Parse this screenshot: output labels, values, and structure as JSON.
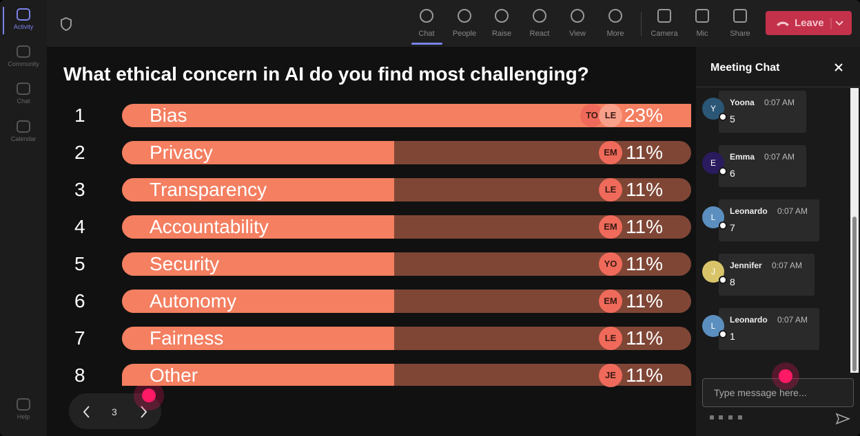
{
  "sidebar": [
    {
      "label": "Activity"
    },
    {
      "label": "Community"
    },
    {
      "label": "Chat"
    },
    {
      "label": "Calendar"
    },
    {
      "label": "Help"
    }
  ],
  "toolbar": [
    "Chat",
    "People",
    "Raise",
    "React",
    "View",
    "More",
    "Camera",
    "Mic",
    "Share"
  ],
  "leave": "Leave",
  "poll": {
    "title": "What ethical concern in AI do you find most challenging?",
    "options": [
      {
        "rank": 1,
        "label": "Bias",
        "percent": {
          "value": 23,
          "label": "23%"
        },
        "voters": [
          "TO",
          "LE"
        ]
      },
      {
        "rank": 2,
        "label": "Privacy",
        "percent": {
          "value": 11,
          "label": "11%"
        },
        "voters": [
          "EM"
        ]
      },
      {
        "rank": 3,
        "label": "Transparency",
        "percent": {
          "value": 11,
          "label": "11%"
        },
        "voters": [
          "LE"
        ]
      },
      {
        "rank": 4,
        "label": "Accountability",
        "percent": {
          "value": 11,
          "label": "11%"
        },
        "voters": [
          "EM"
        ]
      },
      {
        "rank": 5,
        "label": "Security",
        "percent": {
          "value": 11,
          "label": "11%"
        },
        "voters": [
          "YO"
        ]
      },
      {
        "rank": 6,
        "label": "Autonomy",
        "percent": {
          "value": 11,
          "label": "11%"
        },
        "voters": [
          "EM"
        ]
      },
      {
        "rank": 7,
        "label": "Fairness",
        "percent": {
          "value": 11,
          "label": "11%"
        },
        "voters": [
          "LE"
        ]
      },
      {
        "rank": 8,
        "label": "Other",
        "percent": {
          "value": 11,
          "label": "11%"
        },
        "voters": [
          "JE"
        ]
      }
    ],
    "page": 3
  },
  "chat": {
    "title": "Meeting Chat",
    "placeholder": "Type message here...",
    "messages": [
      {
        "initial": "Y",
        "name": "Yoona",
        "time": "0:07 AM",
        "text": "5",
        "color": "#2b5676"
      },
      {
        "initial": "E",
        "name": "Emma",
        "time": "0:07 AM",
        "text": "6",
        "color": "#2a1a5e"
      },
      {
        "initial": "L",
        "name": "Leonardo",
        "time": "0:07 AM",
        "text": "7",
        "color": "#5b8fbf"
      },
      {
        "initial": "J",
        "name": "Jennifer",
        "time": "0:07 AM",
        "text": "8",
        "color": "#d9c46a"
      },
      {
        "initial": "L",
        "name": "Leonardo",
        "time": "0:07 AM",
        "text": "1",
        "color": "#5b8fbf"
      }
    ]
  }
}
